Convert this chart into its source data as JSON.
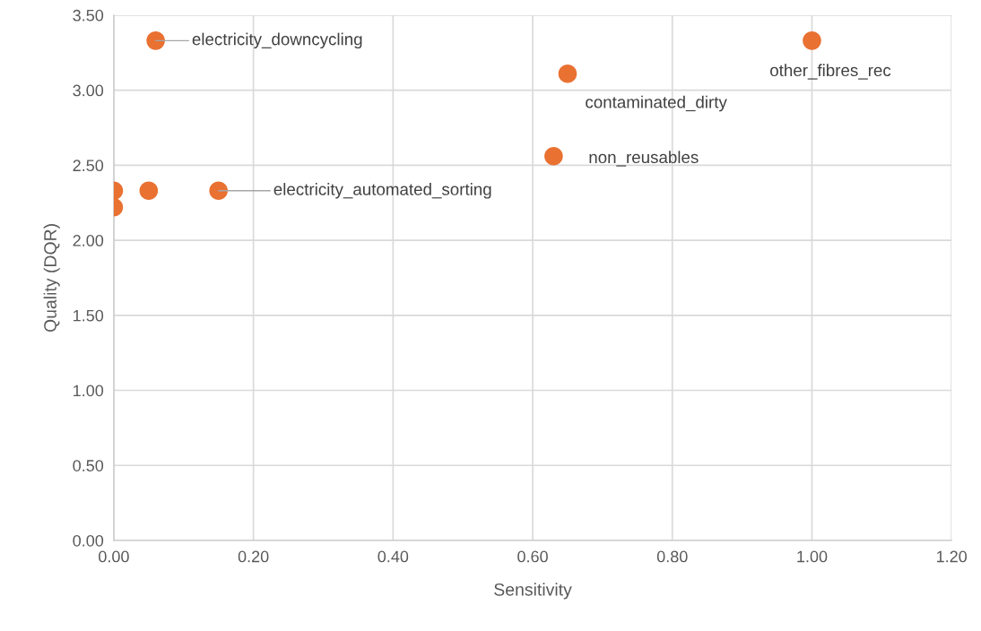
{
  "chart_data": {
    "type": "scatter",
    "xlabel": "Sensitivity",
    "ylabel": "Quality (DQR)",
    "x": [
      0.06,
      0.15,
      0.65,
      0.63,
      1.0,
      0.05,
      0.0,
      0.0
    ],
    "series": [
      {
        "color": "#e97132",
        "values": [
          3.33,
          2.33,
          3.11,
          2.56,
          3.33,
          2.33,
          2.33,
          2.22
        ]
      }
    ],
    "annotations": [
      {
        "text": "electricity_downcycling",
        "x": 0.06,
        "y": 3.33
      },
      {
        "text": "electricity_automated_sorting",
        "x": 0.15,
        "y": 2.33
      },
      {
        "text": "contaminated_dirty",
        "x": 0.65,
        "y": 3.11
      },
      {
        "text": "non_reusables",
        "x": 0.63,
        "y": 2.56
      },
      {
        "text": "other_fibres_rec",
        "x": 1.0,
        "y": 3.33
      }
    ],
    "xlim": [
      0,
      1.2
    ],
    "ylim": [
      0,
      3.5
    ],
    "xticks": [
      {
        "value": 0,
        "label": "0.00"
      },
      {
        "value": 0.2,
        "label": "0.20"
      },
      {
        "value": 0.4,
        "label": "0.40"
      },
      {
        "value": 0.6,
        "label": "0.60"
      },
      {
        "value": 0.8,
        "label": "0.80"
      },
      {
        "value": 1.0,
        "label": "1.00"
      },
      {
        "value": 1.2,
        "label": "1.20"
      }
    ],
    "yticks": [
      {
        "value": 0,
        "label": "0.00"
      },
      {
        "value": 0.5,
        "label": "0.50"
      },
      {
        "value": 1.0,
        "label": "1.00"
      },
      {
        "value": 1.5,
        "label": "1.50"
      },
      {
        "value": 2.0,
        "label": "2.00"
      },
      {
        "value": 2.5,
        "label": "2.50"
      },
      {
        "value": 3.0,
        "label": "3.00"
      },
      {
        "value": 3.5,
        "label": "3.50"
      }
    ],
    "grid": true,
    "marker": "circle",
    "legend": false
  }
}
